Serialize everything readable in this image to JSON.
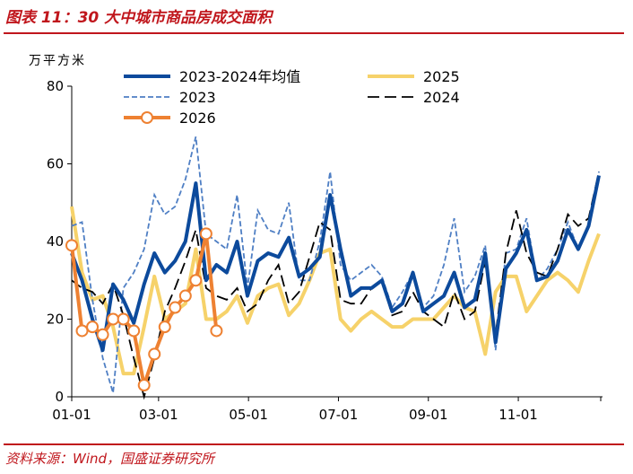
{
  "figure": {
    "title": "图表 11：30 大中城市商品房成交面积",
    "source": "资料来源：Wind，国盛证券研究所"
  },
  "colors": {
    "accent": "#c0161c",
    "avg": "#0c4a9c",
    "y2023": "#4f7fc4",
    "y2024": "#000000",
    "y2025": "#f6d26a",
    "y2026": "#ee8132"
  },
  "chart_data": {
    "type": "line",
    "ylabel": "万平方米",
    "ylim": [
      0,
      80
    ],
    "yticks": [
      0,
      20,
      40,
      60,
      80
    ],
    "xlim": [
      1,
      52
    ],
    "xticks": [
      {
        "label": "01-01",
        "week": 1
      },
      {
        "label": "03-01",
        "week": 9.4
      },
      {
        "label": "05-01",
        "week": 18.1
      },
      {
        "label": "07-01",
        "week": 26.8
      },
      {
        "label": "09-01",
        "week": 35.5
      },
      {
        "label": "11-01",
        "week": 44.2
      }
    ],
    "legend": {
      "placement": "top",
      "order": [
        "avg",
        "y2025",
        "y2023",
        "y2024",
        "y2026"
      ]
    },
    "series": [
      {
        "key": "avg",
        "name": "2023-2024年均值",
        "values": [
          37,
          30,
          20,
          12,
          29,
          25,
          19,
          29,
          37,
          32,
          35,
          40,
          55,
          30,
          34,
          32,
          40,
          26,
          35,
          37,
          36,
          41,
          31,
          33,
          36,
          52,
          38,
          26,
          28,
          28,
          30,
          22,
          24,
          32,
          22,
          24,
          26,
          32,
          23,
          25,
          37,
          14,
          33,
          37,
          43,
          30,
          31,
          35,
          43,
          38,
          44,
          57
        ]
      },
      {
        "key": "y2023",
        "name": "2023",
        "values": [
          44,
          45,
          25,
          10,
          1,
          28,
          32,
          38,
          52,
          47,
          49,
          56,
          67,
          42,
          40,
          38,
          52,
          28,
          48,
          43,
          42,
          50,
          30,
          30,
          40,
          58,
          34,
          30,
          32,
          34,
          31,
          23,
          27,
          32,
          23,
          26,
          34,
          46,
          27,
          31,
          39,
          12,
          37,
          38,
          46,
          30,
          33,
          38,
          45,
          38,
          44,
          58
        ]
      },
      {
        "key": "y2024",
        "name": "2024",
        "values": [
          30,
          28,
          27,
          24,
          29,
          21,
          10,
          0,
          10,
          22,
          28,
          35,
          43,
          28,
          26,
          25,
          28,
          22,
          24,
          30,
          34,
          24,
          27,
          36,
          45,
          43,
          25,
          24,
          24,
          28,
          30,
          21,
          22,
          27,
          22,
          20,
          18,
          27,
          20,
          22,
          35,
          16,
          37,
          48,
          37,
          32,
          31,
          38,
          47,
          44,
          46,
          58
        ]
      },
      {
        "key": "y2025",
        "name": "2025",
        "values": [
          49,
          32,
          25,
          26,
          18,
          6,
          6,
          18,
          31,
          20,
          22,
          24,
          38,
          20,
          20,
          22,
          26,
          19,
          26,
          28,
          29,
          21,
          24,
          30,
          37,
          38,
          20,
          17,
          20,
          22,
          20,
          18,
          18,
          20,
          20,
          20,
          23,
          26,
          23,
          22,
          11,
          27,
          31,
          31,
          22,
          26,
          30,
          32,
          30,
          27,
          35,
          42
        ]
      },
      {
        "key": "y2026",
        "name": "2026",
        "values": [
          39,
          17,
          18,
          16,
          20,
          20,
          17,
          3,
          11,
          18,
          23,
          26,
          30,
          42,
          17
        ]
      }
    ]
  }
}
